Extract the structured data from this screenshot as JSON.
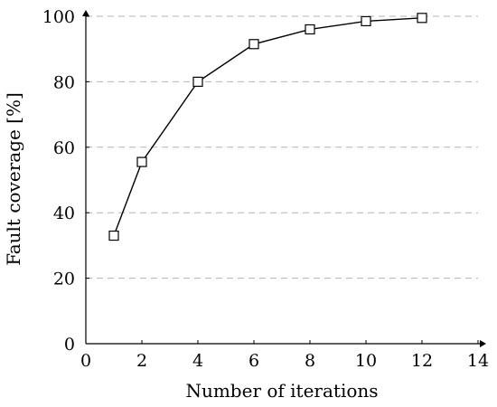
{
  "chart_data": {
    "type": "line",
    "xlabel": "Number of iterations",
    "ylabel": "Fault coverage [%]",
    "xlim": [
      0,
      14
    ],
    "ylim": [
      0,
      100
    ],
    "x_ticks": [
      "0",
      "2",
      "4",
      "6",
      "8",
      "10",
      "12",
      "14"
    ],
    "y_ticks": [
      "0",
      "20",
      "40",
      "60",
      "80",
      "100"
    ],
    "grid": "horizontal dashed",
    "marker": "square",
    "series": [
      {
        "x": [
          1,
          2,
          4,
          6,
          8,
          10,
          12
        ],
        "y": [
          33,
          55.5,
          80,
          91.5,
          96,
          98.5,
          99.5
        ]
      }
    ]
  }
}
